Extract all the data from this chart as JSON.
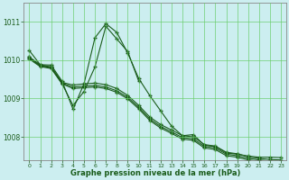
{
  "title": "Graphe pression niveau de la mer (hPa)",
  "bg_color": "#cceef0",
  "line_color": "#1a5c1a",
  "grid_color": "#66cc66",
  "xlim": [
    -0.5,
    23.5
  ],
  "ylim": [
    1007.4,
    1011.5
  ],
  "yticks": [
    1008,
    1009,
    1010,
    1011
  ],
  "xticks": [
    0,
    1,
    2,
    3,
    4,
    5,
    6,
    7,
    8,
    9,
    10,
    11,
    12,
    13,
    14,
    15,
    16,
    17,
    18,
    19,
    20,
    21,
    22,
    23
  ],
  "line1_x": [
    0,
    1,
    2,
    3,
    4,
    5,
    6,
    7,
    8,
    9,
    10,
    11,
    12,
    13,
    14,
    15,
    16,
    17,
    18,
    19,
    20,
    21,
    22,
    23
  ],
  "line1_y": [
    1010.25,
    1009.88,
    1009.87,
    1009.45,
    1008.72,
    1009.38,
    1010.58,
    1010.95,
    1010.72,
    1010.18,
    1009.52,
    1009.08,
    1008.68,
    1008.28,
    1008.03,
    1008.06,
    1007.78,
    1007.75,
    1007.58,
    1007.55,
    1007.5,
    1007.47,
    1007.47,
    1007.46
  ],
  "line2_x": [
    0,
    1,
    2,
    3,
    4,
    5,
    6,
    7,
    8,
    9,
    10,
    11,
    12,
    13,
    14,
    15,
    16,
    17,
    18,
    19,
    20,
    21,
    22,
    23
  ],
  "line2_y": [
    1010.08,
    1009.88,
    1009.82,
    1009.42,
    1009.35,
    1009.38,
    1009.4,
    1009.36,
    1009.26,
    1009.08,
    1008.82,
    1008.52,
    1008.32,
    1008.18,
    1008.03,
    1008.0,
    1007.8,
    1007.76,
    1007.6,
    1007.56,
    1007.48,
    1007.44,
    1007.41,
    1007.4
  ],
  "line3_x": [
    0,
    1,
    2,
    3,
    4,
    5,
    6,
    7,
    8,
    9,
    10,
    11,
    12,
    13,
    14,
    15,
    16,
    17,
    18,
    19,
    20,
    21,
    22,
    23
  ],
  "line3_y": [
    1010.05,
    1009.85,
    1009.8,
    1009.4,
    1009.3,
    1009.32,
    1009.34,
    1009.3,
    1009.2,
    1009.03,
    1008.77,
    1008.47,
    1008.27,
    1008.13,
    1007.98,
    1007.95,
    1007.75,
    1007.71,
    1007.55,
    1007.51,
    1007.44,
    1007.4,
    1007.37,
    1007.36
  ],
  "line4_x": [
    0,
    1,
    2,
    3,
    4,
    5,
    6,
    7,
    8,
    9,
    10,
    11,
    12,
    13,
    14,
    15,
    16,
    17,
    18,
    19,
    20,
    21,
    22,
    23
  ],
  "line4_y": [
    1010.03,
    1009.83,
    1009.78,
    1009.38,
    1009.26,
    1009.28,
    1009.3,
    1009.26,
    1009.16,
    1008.99,
    1008.73,
    1008.43,
    1008.23,
    1008.09,
    1007.94,
    1007.91,
    1007.71,
    1007.67,
    1007.51,
    1007.47,
    1007.4,
    1007.36,
    1007.33,
    1007.32
  ],
  "line5_x": [
    0,
    1,
    2,
    3,
    4,
    5,
    6,
    7,
    8,
    9,
    10
  ],
  "line5_y": [
    1010.08,
    1009.85,
    1009.82,
    1009.38,
    1008.82,
    1009.18,
    1009.82,
    1010.88,
    1010.55,
    1010.22,
    1009.45
  ]
}
